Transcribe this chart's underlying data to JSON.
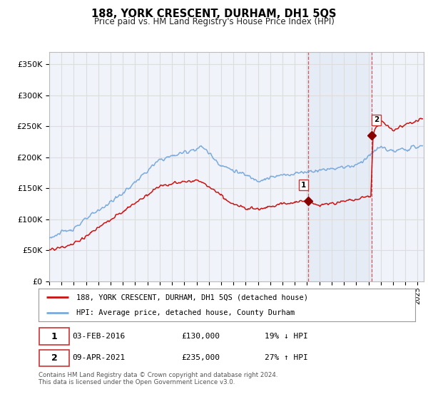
{
  "title": "188, YORK CRESCENT, DURHAM, DH1 5QS",
  "subtitle": "Price paid vs. HM Land Registry's House Price Index (HPI)",
  "ylabel_ticks": [
    "£0",
    "£50K",
    "£100K",
    "£150K",
    "£200K",
    "£250K",
    "£300K",
    "£350K"
  ],
  "ytick_values": [
    0,
    50000,
    100000,
    150000,
    200000,
    250000,
    300000,
    350000
  ],
  "ylim": [
    0,
    370000
  ],
  "xlim_start": 1995.0,
  "xlim_end": 2025.5,
  "sale1_date": 2016.09,
  "sale1_price": 130000,
  "sale2_date": 2021.27,
  "sale2_price": 235000,
  "hpi_color": "#7aaadd",
  "price_color": "#cc1111",
  "sale_dot_color": "#880000",
  "vline_color": "#cc3333",
  "grid_color": "#dddddd",
  "background_color": "#f0f4fa",
  "legend_label_price": "188, YORK CRESCENT, DURHAM, DH1 5QS (detached house)",
  "legend_label_hpi": "HPI: Average price, detached house, County Durham",
  "footer_text": "Contains HM Land Registry data © Crown copyright and database right 2024.\nThis data is licensed under the Open Government Licence v3.0.",
  "xtick_years": [
    1995,
    1996,
    1997,
    1998,
    1999,
    2000,
    2001,
    2002,
    2003,
    2004,
    2005,
    2006,
    2007,
    2008,
    2009,
    2010,
    2011,
    2012,
    2013,
    2014,
    2015,
    2016,
    2017,
    2018,
    2019,
    2020,
    2021,
    2022,
    2023,
    2024,
    2025
  ]
}
